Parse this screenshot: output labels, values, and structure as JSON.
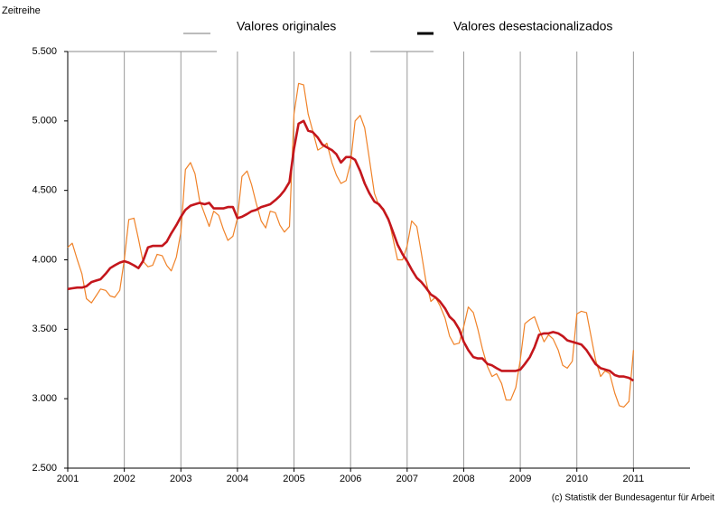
{
  "chart_data": {
    "type": "line",
    "title": "Zeitreihe",
    "source": "(c) Statistik der Bundesagentur für Arbeit",
    "x": [
      2001,
      2001.08,
      2001.17,
      2001.25,
      2001.33,
      2001.42,
      2001.5,
      2001.58,
      2001.67,
      2001.75,
      2001.83,
      2001.92,
      2002,
      2002.08,
      2002.17,
      2002.25,
      2002.33,
      2002.42,
      2002.5,
      2002.58,
      2002.67,
      2002.75,
      2002.83,
      2002.92,
      2003,
      2003.08,
      2003.17,
      2003.25,
      2003.33,
      2003.42,
      2003.5,
      2003.58,
      2003.67,
      2003.75,
      2003.83,
      2003.92,
      2004,
      2004.08,
      2004.17,
      2004.25,
      2004.33,
      2004.42,
      2004.5,
      2004.58,
      2004.67,
      2004.75,
      2004.83,
      2004.92,
      2005,
      2005.08,
      2005.17,
      2005.25,
      2005.33,
      2005.42,
      2005.5,
      2005.58,
      2005.67,
      2005.75,
      2005.83,
      2005.92,
      2006,
      2006.08,
      2006.17,
      2006.25,
      2006.33,
      2006.42,
      2006.5,
      2006.58,
      2006.67,
      2006.75,
      2006.83,
      2006.92,
      2007,
      2007.08,
      2007.17,
      2007.25,
      2007.33,
      2007.42,
      2007.5,
      2007.58,
      2007.67,
      2007.75,
      2007.83,
      2007.92,
      2008,
      2008.08,
      2008.17,
      2008.25,
      2008.33,
      2008.42,
      2008.5,
      2008.58,
      2008.67,
      2008.75,
      2008.83,
      2008.92,
      2009,
      2009.08,
      2009.17,
      2009.25,
      2009.33,
      2009.42,
      2009.5,
      2009.58,
      2009.67,
      2009.75,
      2009.83,
      2009.92,
      2010,
      2010.08,
      2010.17,
      2010.25,
      2010.33,
      2010.42,
      2010.5,
      2010.58,
      2010.67,
      2010.75,
      2010.83,
      2010.92,
      2011
    ],
    "series": [
      {
        "name": "Valores originales",
        "color": "#f08228",
        "values": [
          4090,
          4120,
          4000,
          3900,
          3720,
          3690,
          3740,
          3790,
          3780,
          3740,
          3730,
          3780,
          4000,
          4290,
          4300,
          4150,
          3990,
          3950,
          3960,
          4040,
          4030,
          3960,
          3920,
          4020,
          4200,
          4650,
          4700,
          4620,
          4430,
          4330,
          4240,
          4350,
          4320,
          4220,
          4140,
          4170,
          4300,
          4600,
          4640,
          4540,
          4410,
          4280,
          4230,
          4350,
          4340,
          4250,
          4200,
          4240,
          5050,
          5270,
          5260,
          5050,
          4930,
          4790,
          4810,
          4840,
          4700,
          4610,
          4550,
          4570,
          4700,
          5000,
          5040,
          4950,
          4730,
          4480,
          4390,
          4370,
          4300,
          4150,
          4000,
          4000,
          4100,
          4280,
          4240,
          4050,
          3850,
          3700,
          3730,
          3670,
          3580,
          3450,
          3390,
          3400,
          3520,
          3660,
          3620,
          3500,
          3360,
          3230,
          3160,
          3180,
          3110,
          2990,
          2990,
          3080,
          3280,
          3540,
          3570,
          3590,
          3500,
          3410,
          3460,
          3430,
          3350,
          3240,
          3220,
          3270,
          3610,
          3630,
          3620,
          3450,
          3280,
          3160,
          3200,
          3180,
          3040,
          2950,
          2940,
          2980,
          3350
        ]
      },
      {
        "name": "Valores desestacionalizados",
        "color": "#c4161c",
        "values": [
          3790,
          3795,
          3800,
          3800,
          3810,
          3840,
          3850,
          3860,
          3900,
          3940,
          3960,
          3980,
          3990,
          3980,
          3960,
          3940,
          3990,
          4090,
          4100,
          4100,
          4100,
          4130,
          4190,
          4250,
          4310,
          4360,
          4390,
          4400,
          4410,
          4400,
          4410,
          4370,
          4370,
          4370,
          4380,
          4380,
          4300,
          4310,
          4330,
          4350,
          4360,
          4380,
          4390,
          4400,
          4430,
          4460,
          4500,
          4560,
          4800,
          4980,
          5000,
          4930,
          4920,
          4880,
          4830,
          4810,
          4790,
          4760,
          4700,
          4740,
          4740,
          4720,
          4640,
          4550,
          4480,
          4420,
          4400,
          4360,
          4290,
          4200,
          4110,
          4040,
          3990,
          3930,
          3870,
          3840,
          3800,
          3750,
          3730,
          3700,
          3650,
          3590,
          3560,
          3500,
          3410,
          3350,
          3300,
          3290,
          3290,
          3250,
          3240,
          3220,
          3200,
          3200,
          3200,
          3200,
          3210,
          3250,
          3300,
          3370,
          3460,
          3470,
          3470,
          3480,
          3470,
          3450,
          3420,
          3410,
          3400,
          3390,
          3350,
          3300,
          3250,
          3220,
          3210,
          3200,
          3170,
          3160,
          3160,
          3150,
          3130
        ]
      }
    ],
    "xlim": [
      2001,
      2012
    ],
    "xticks": [
      2001,
      2002,
      2003,
      2004,
      2005,
      2006,
      2007,
      2008,
      2009,
      2010,
      2011
    ],
    "ylim": [
      2500,
      5500
    ],
    "yticks": [
      {
        "value": 2500,
        "label": "2.500"
      },
      {
        "value": 3000,
        "label": "3.000"
      },
      {
        "value": 3500,
        "label": "3.500"
      },
      {
        "value": 4000,
        "label": "4.000"
      },
      {
        "value": 4500,
        "label": "4.500"
      },
      {
        "value": 5000,
        "label": "5.000"
      },
      {
        "value": 5500,
        "label": "5.500"
      }
    ],
    "grid": true
  }
}
